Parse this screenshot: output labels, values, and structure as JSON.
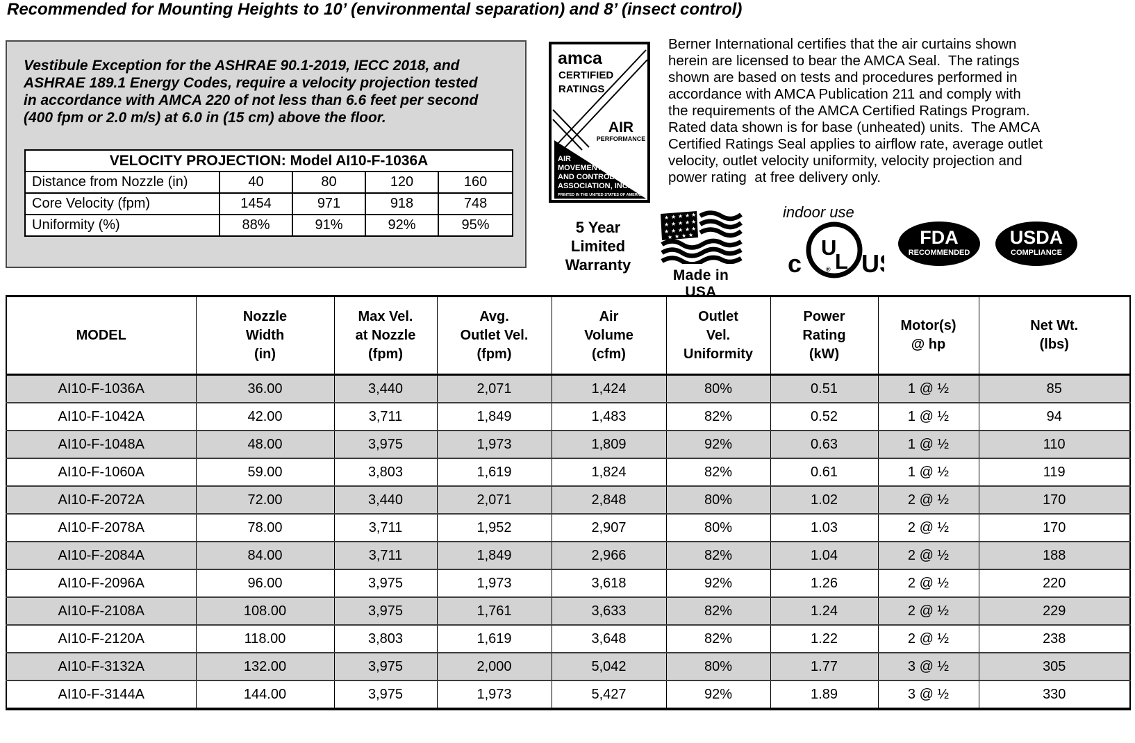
{
  "title": "Recommended for Mounting Heights to 10’ (environmental separation) and 8’ (insect control)",
  "colors": {
    "box_bg": "#d7d7d7",
    "row_alt_bg": "#d3d3d3",
    "ink": "#000000"
  },
  "vestibule_box": {
    "text": "Vestibule Exception for the ASHRAE 90.1-2019, IECC 2018, and\nASHRAE 189.1 Energy Codes, require a velocity projection tested\nin accordance with AMCA 220 of not less than 6.6 feet per second\n(400 fpm or 2.0 m/s) at 6.0 in (15 cm) above the floor.",
    "velocity_table": {
      "title": "VELOCITY PROJECTION: Model AI10-F-1036A",
      "rows": [
        {
          "label": "Distance from Nozzle (in)",
          "values": [
            "40",
            "80",
            "120",
            "160"
          ]
        },
        {
          "label": "Core Velocity (fpm)",
          "values": [
            "1454",
            "971",
            "918",
            "748"
          ]
        },
        {
          "label": "Uniformity (%)",
          "values": [
            "88%",
            "91%",
            "92%",
            "95%"
          ]
        }
      ]
    }
  },
  "amca_seal": {
    "brand": "amca",
    "certified": "CERTIFIED",
    "ratings": "RATINGS",
    "air_performance_line1": "AIR",
    "air_performance_line2": "PERFORMANCE",
    "org_line1": "AIR",
    "org_line2": "MOVEMENT",
    "org_line3": "AND CONTROL",
    "org_line4": "ASSOCIATION, INC.",
    "printed": "PRINTED IN THE UNITED STATES OF AMERICA"
  },
  "certification_paragraph": "Berner International certifies that the air curtains shown\nherein are licensed to bear the AMCA Seal.  The ratings\nshown are based on tests and procedures performed in\naccordance with AMCA Publication 211 and comply with\nthe requirements of the AMCA Certified Ratings Program.\nRated data shown is for base (unheated) units.  The AMCA\nCertified Ratings Seal applies to airflow rate, average outlet\nvelocity, outlet velocity uniformity, velocity projection and\npower rating  at free delivery only.",
  "badges": {
    "warranty": "5 Year\nLimited\nWarranty",
    "made_in_usa": "Made in USA",
    "indoor_use": "indoor use",
    "ul": {
      "c": "c",
      "u": "U",
      "l": "L",
      "us": "US",
      "reg": "®"
    },
    "fda": {
      "title": "FDA",
      "subtitle": "RECOMMENDED"
    },
    "usda": {
      "title": "USDA",
      "subtitle": "COMPLIANCE"
    }
  },
  "spec_table": {
    "headers": [
      "MODEL",
      "Nozzle\nWidth\n(in)",
      "Max Vel.\nat Nozzle\n(fpm)",
      "Avg.\nOutlet Vel.\n(fpm)",
      "Air\nVolume\n(cfm)",
      "Outlet\nVel.\nUniformity",
      "Power\nRating\n(kW)",
      "Motor(s)\n@ hp",
      "Net Wt.\n(lbs)"
    ],
    "rows": [
      [
        "AI10-F-1036A",
        "36.00",
        "3,440",
        "2,071",
        "1,424",
        "80%",
        "0.51",
        "1 @ ½",
        "85"
      ],
      [
        "AI10-F-1042A",
        "42.00",
        "3,711",
        "1,849",
        "1,483",
        "82%",
        "0.52",
        "1 @ ½",
        "94"
      ],
      [
        "AI10-F-1048A",
        "48.00",
        "3,975",
        "1,973",
        "1,809",
        "92%",
        "0.63",
        "1 @ ½",
        "110"
      ],
      [
        "AI10-F-1060A",
        "59.00",
        "3,803",
        "1,619",
        "1,824",
        "82%",
        "0.61",
        "1 @ ½",
        "119"
      ],
      [
        "AI10-F-2072A",
        "72.00",
        "3,440",
        "2,071",
        "2,848",
        "80%",
        "1.02",
        "2 @ ½",
        "170"
      ],
      [
        "AI10-F-2078A",
        "78.00",
        "3,711",
        "1,952",
        "2,907",
        "80%",
        "1.03",
        "2 @ ½",
        "170"
      ],
      [
        "AI10-F-2084A",
        "84.00",
        "3,711",
        "1,849",
        "2,966",
        "82%",
        "1.04",
        "2 @ ½",
        "188"
      ],
      [
        "AI10-F-2096A",
        "96.00",
        "3,975",
        "1,973",
        "3,618",
        "92%",
        "1.26",
        "2 @ ½",
        "220"
      ],
      [
        "AI10-F-2108A",
        "108.00",
        "3,975",
        "1,761",
        "3,633",
        "82%",
        "1.24",
        "2 @ ½",
        "229"
      ],
      [
        "AI10-F-2120A",
        "118.00",
        "3,803",
        "1,619",
        "3,648",
        "82%",
        "1.22",
        "2 @ ½",
        "238"
      ],
      [
        "AI10-F-3132A",
        "132.00",
        "3,975",
        "2,000",
        "5,042",
        "80%",
        "1.77",
        "3 @ ½",
        "305"
      ],
      [
        "AI10-F-3144A",
        "144.00",
        "3,975",
        "1,973",
        "5,427",
        "92%",
        "1.89",
        "3 @ ½",
        "330"
      ]
    ]
  }
}
